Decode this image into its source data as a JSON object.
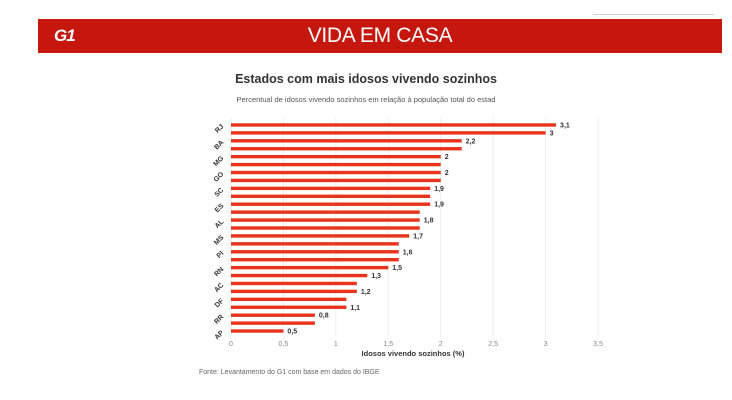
{
  "header": {
    "logo": "G1",
    "title": "VIDA EM CASA"
  },
  "footer": {
    "source": "Fonte: Levantamento do G1 com base em dados do IBGE"
  },
  "colors": {
    "banner": "#c5170d",
    "bar": "#e8341c",
    "grid": "#eeeeee"
  },
  "chart_data": {
    "type": "bar",
    "orientation": "horizontal",
    "title": "Estados com mais idosos vivendo sozinhos",
    "subtitle": "Percentual de idosos vivendo sozinhos em relação à população total do estad",
    "xlabel": "Idosos vivendo sozinhos (%)",
    "ylabel": "",
    "xlim": [
      0,
      3.5
    ],
    "xticks": [
      0,
      0.5,
      1,
      1.5,
      2,
      2.5,
      3,
      3.5
    ],
    "xtick_labels": [
      "0",
      "0,5",
      "1",
      "1,5",
      "2",
      "2,5",
      "3",
      "3,5"
    ],
    "grid": true,
    "bars": [
      {
        "value": 3.1,
        "label": "3,1",
        "category": "RJ"
      },
      {
        "value": 3.0,
        "label": "3",
        "category": ""
      },
      {
        "value": 2.2,
        "label": "2,2",
        "category": "BA"
      },
      {
        "value": 2.2,
        "label": "",
        "category": ""
      },
      {
        "value": 2.0,
        "label": "2",
        "category": "MG"
      },
      {
        "value": 2.0,
        "label": "",
        "category": ""
      },
      {
        "value": 2.0,
        "label": "2",
        "category": "GO"
      },
      {
        "value": 2.0,
        "label": "",
        "category": ""
      },
      {
        "value": 1.9,
        "label": "1,9",
        "category": "SC"
      },
      {
        "value": 1.9,
        "label": "",
        "category": ""
      },
      {
        "value": 1.9,
        "label": "1,9",
        "category": "ES"
      },
      {
        "value": 1.8,
        "label": "",
        "category": ""
      },
      {
        "value": 1.8,
        "label": "1,8",
        "category": "AL"
      },
      {
        "value": 1.8,
        "label": "",
        "category": ""
      },
      {
        "value": 1.7,
        "label": "1,7",
        "category": "MS"
      },
      {
        "value": 1.6,
        "label": "",
        "category": ""
      },
      {
        "value": 1.6,
        "label": "1,6",
        "category": "PI"
      },
      {
        "value": 1.6,
        "label": "",
        "category": ""
      },
      {
        "value": 1.5,
        "label": "1,5",
        "category": "RN"
      },
      {
        "value": 1.3,
        "label": "1,3",
        "category": ""
      },
      {
        "value": 1.2,
        "label": "",
        "category": "AC"
      },
      {
        "value": 1.2,
        "label": "1,2",
        "category": ""
      },
      {
        "value": 1.1,
        "label": "",
        "category": "DF"
      },
      {
        "value": 1.1,
        "label": "1,1",
        "category": ""
      },
      {
        "value": 0.8,
        "label": "0,8",
        "category": "RR"
      },
      {
        "value": 0.8,
        "label": "",
        "category": ""
      },
      {
        "value": 0.5,
        "label": "0,5",
        "category": "AP"
      }
    ]
  }
}
